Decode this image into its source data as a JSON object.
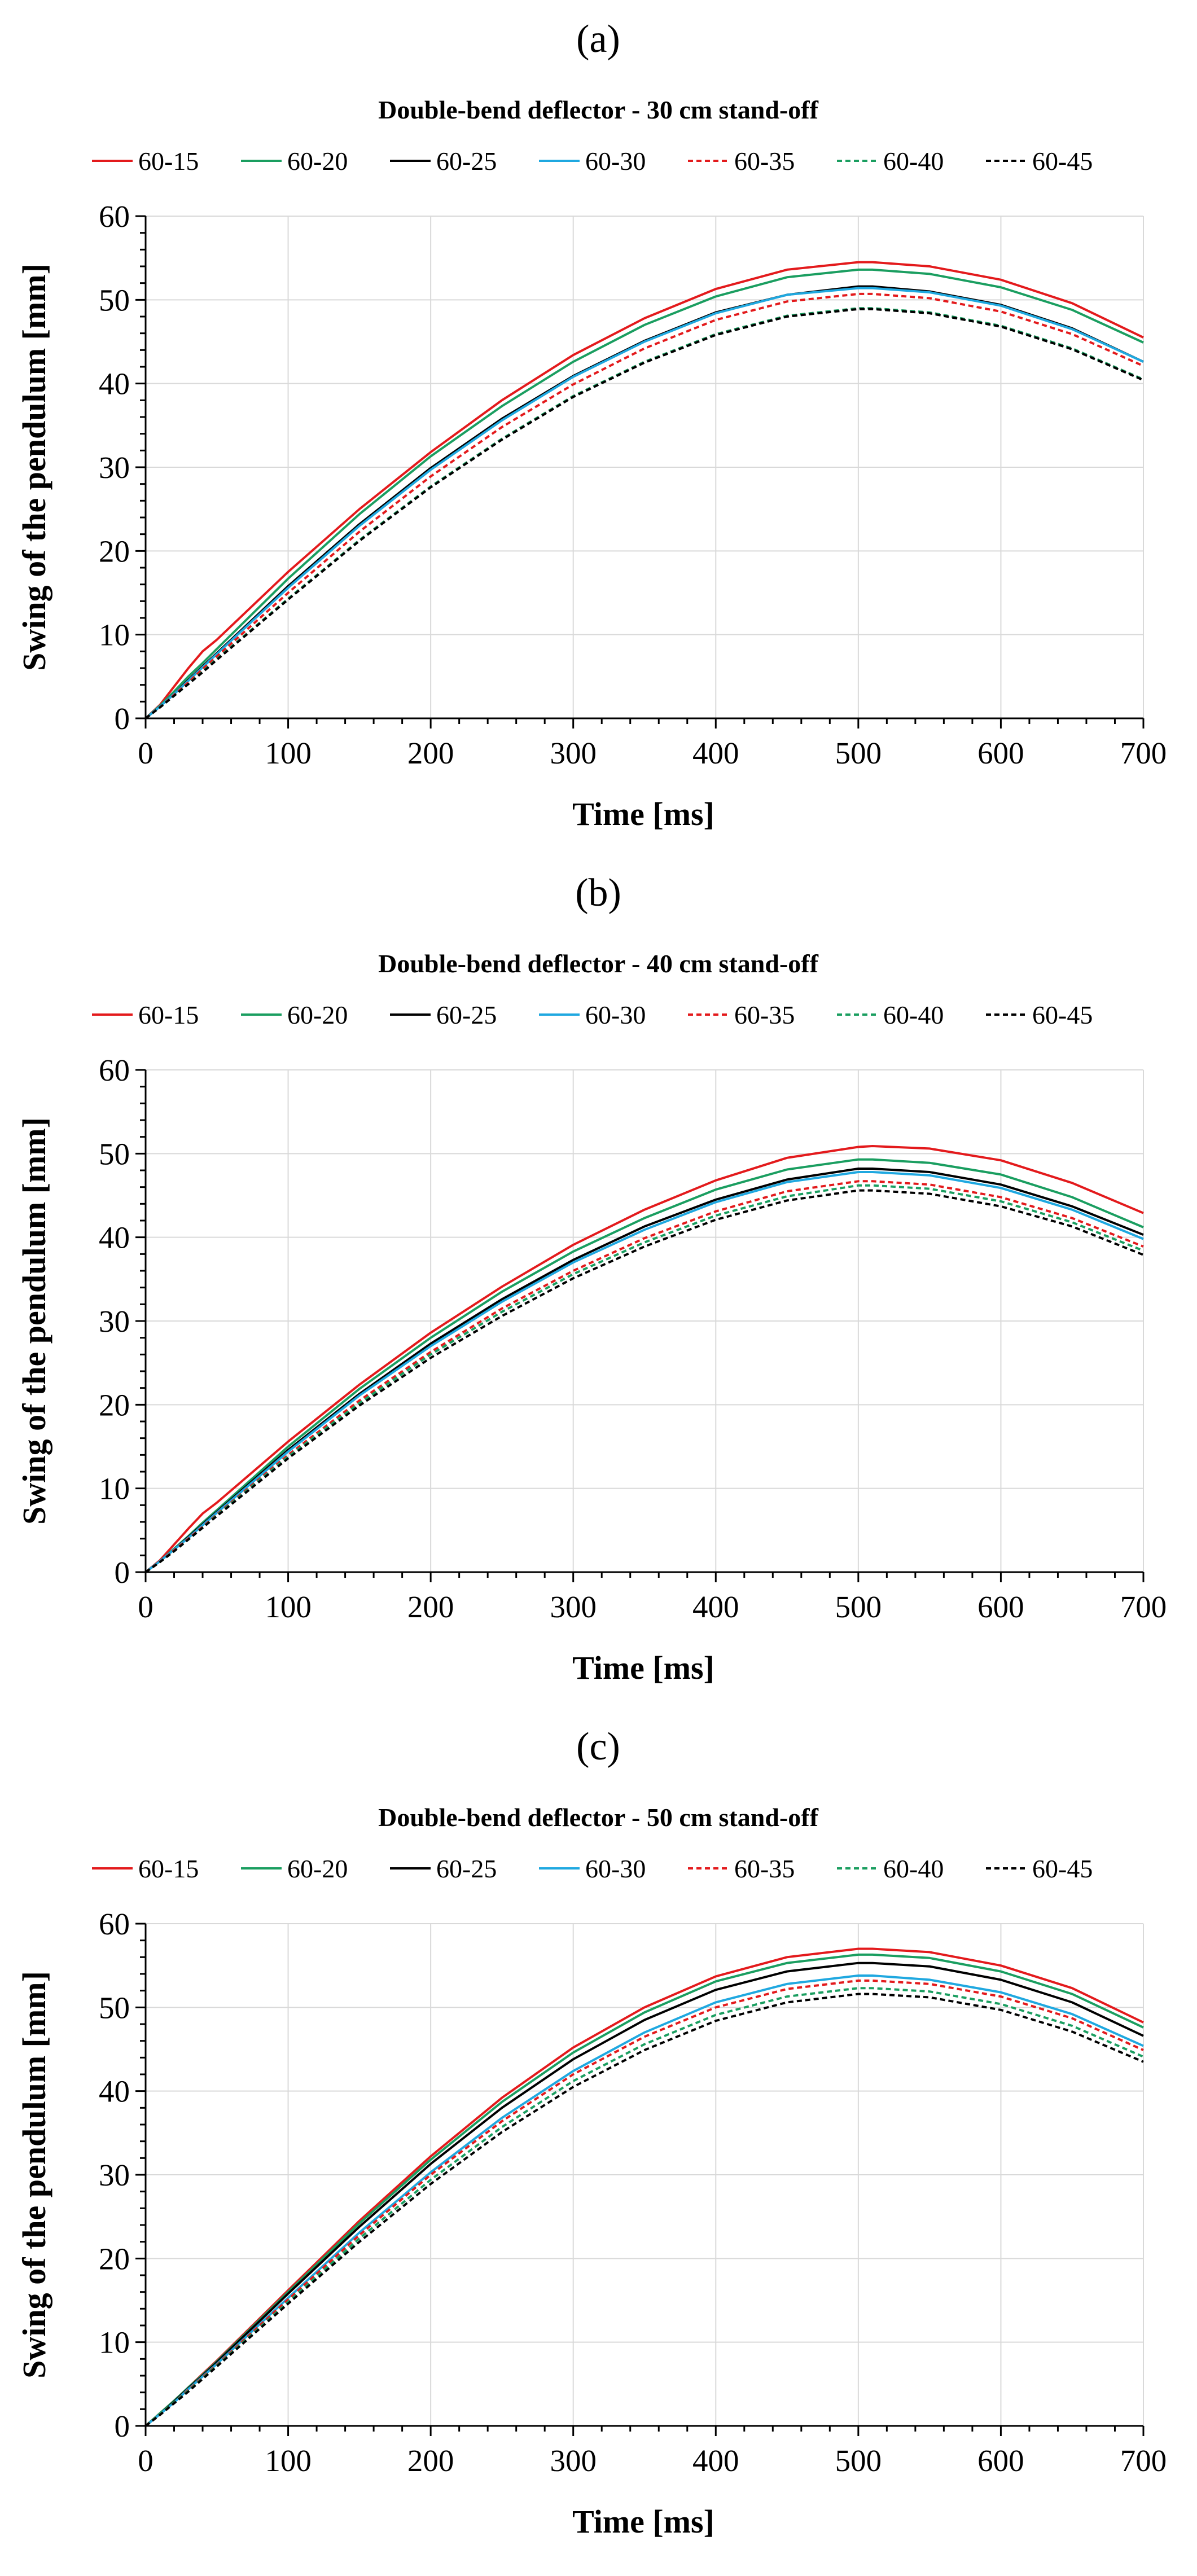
{
  "colors": {
    "red": "#e31a1c",
    "green": "#1a9e60",
    "black": "#000000",
    "blue": "#1fa8e0",
    "grid": "#d9d9d9",
    "axis": "#000000"
  },
  "legend_order": [
    "60-15",
    "60-20",
    "60-25",
    "60-30",
    "60-35",
    "60-40",
    "60-45"
  ],
  "chart_data": [
    {
      "type": "line",
      "panel": "(a)",
      "title": "Double-bend deflector - 30 cm stand-off",
      "xlabel": "Time [ms]",
      "ylabel": "Swing of the pendulum [mm]",
      "xlim": [
        0,
        700
      ],
      "ylim": [
        0,
        60
      ],
      "xticks": [
        0,
        100,
        200,
        300,
        400,
        500,
        600,
        700
      ],
      "yticks": [
        0,
        10,
        20,
        30,
        40,
        50,
        60
      ],
      "grid": true,
      "legend_position": "top",
      "x": [
        0,
        10,
        20,
        30,
        40,
        50,
        100,
        150,
        200,
        250,
        300,
        350,
        400,
        450,
        500,
        510,
        550,
        600,
        650,
        700
      ],
      "series": [
        {
          "name": "60-15",
          "color": "red",
          "dash": false,
          "values": [
            0,
            1.6,
            3.8,
            6.0,
            8.0,
            9.4,
            17.5,
            25.0,
            31.8,
            38.0,
            43.4,
            47.8,
            51.3,
            53.6,
            54.5,
            54.5,
            54.0,
            52.4,
            49.6,
            45.5
          ]
        },
        {
          "name": "60-20",
          "color": "green",
          "dash": false,
          "values": [
            0,
            1.5,
            3.2,
            5.0,
            6.6,
            8.3,
            16.7,
            24.4,
            31.3,
            37.3,
            42.6,
            47.0,
            50.4,
            52.7,
            53.6,
            53.6,
            53.1,
            51.5,
            48.8,
            44.9
          ]
        },
        {
          "name": "60-25",
          "color": "black",
          "dash": false,
          "values": [
            0,
            1.4,
            2.9,
            4.6,
            6.2,
            7.8,
            15.8,
            23.2,
            29.9,
            35.8,
            40.9,
            45.1,
            48.5,
            50.6,
            51.6,
            51.6,
            51.0,
            49.4,
            46.6,
            42.6
          ]
        },
        {
          "name": "60-30",
          "color": "blue",
          "dash": false,
          "values": [
            0,
            1.4,
            2.9,
            4.5,
            6.1,
            7.7,
            15.6,
            23.0,
            29.7,
            35.6,
            40.8,
            45.0,
            48.4,
            50.6,
            51.4,
            51.4,
            50.9,
            49.3,
            46.5,
            42.6
          ]
        },
        {
          "name": "60-35",
          "color": "red",
          "dash": true,
          "values": [
            0,
            1.3,
            2.8,
            4.3,
            5.9,
            7.4,
            15.0,
            22.3,
            28.9,
            34.8,
            39.9,
            44.2,
            47.6,
            49.8,
            50.7,
            50.7,
            50.2,
            48.6,
            45.9,
            42.1
          ]
        },
        {
          "name": "60-40",
          "color": "green",
          "dash": true,
          "values": [
            0,
            1.3,
            2.7,
            4.1,
            5.6,
            7.1,
            14.3,
            21.3,
            27.7,
            33.4,
            38.5,
            42.6,
            45.9,
            48.1,
            49.0,
            49.0,
            48.5,
            46.9,
            44.2,
            40.5
          ]
        },
        {
          "name": "60-45",
          "color": "black",
          "dash": true,
          "values": [
            0,
            1.3,
            2.7,
            4.1,
            5.5,
            7.0,
            14.2,
            21.2,
            27.6,
            33.3,
            38.4,
            42.5,
            45.8,
            48.0,
            48.9,
            48.9,
            48.4,
            46.8,
            44.1,
            40.4
          ]
        }
      ]
    },
    {
      "type": "line",
      "panel": "(b)",
      "title": "Double-bend deflector - 40 cm stand-off",
      "xlabel": "Time [ms]",
      "ylabel": "Swing of the pendulum [mm]",
      "xlim": [
        0,
        700
      ],
      "ylim": [
        0,
        60
      ],
      "xticks": [
        0,
        100,
        200,
        300,
        400,
        500,
        600,
        700
      ],
      "yticks": [
        0,
        10,
        20,
        30,
        40,
        50,
        60
      ],
      "grid": true,
      "legend_position": "top",
      "x": [
        0,
        10,
        20,
        30,
        40,
        50,
        100,
        150,
        200,
        250,
        300,
        350,
        400,
        450,
        500,
        510,
        550,
        600,
        650,
        700
      ],
      "series": [
        {
          "name": "60-15",
          "color": "red",
          "dash": false,
          "values": [
            0,
            1.4,
            3.3,
            5.2,
            7.0,
            8.3,
            15.6,
            22.4,
            28.6,
            34.1,
            39.1,
            43.3,
            46.8,
            49.5,
            50.8,
            50.9,
            50.6,
            49.2,
            46.5,
            42.9
          ]
        },
        {
          "name": "60-20",
          "color": "green",
          "dash": false,
          "values": [
            0,
            1.3,
            2.8,
            4.3,
            5.9,
            7.4,
            15.0,
            21.9,
            28.0,
            33.5,
            38.3,
            42.3,
            45.7,
            48.1,
            49.3,
            49.3,
            48.9,
            47.5,
            44.8,
            41.2
          ]
        },
        {
          "name": "60-25",
          "color": "black",
          "dash": false,
          "values": [
            0,
            1.3,
            2.7,
            4.2,
            5.7,
            7.2,
            14.6,
            21.3,
            27.3,
            32.6,
            37.3,
            41.3,
            44.5,
            46.9,
            48.2,
            48.2,
            47.8,
            46.3,
            43.7,
            40.3
          ]
        },
        {
          "name": "60-30",
          "color": "blue",
          "dash": false,
          "values": [
            0,
            1.3,
            2.7,
            4.1,
            5.6,
            7.1,
            14.4,
            21.1,
            27.0,
            32.3,
            37.0,
            40.9,
            44.2,
            46.6,
            47.8,
            47.8,
            47.4,
            45.9,
            43.3,
            39.8
          ]
        },
        {
          "name": "60-35",
          "color": "red",
          "dash": true,
          "values": [
            0,
            1.2,
            2.6,
            4.0,
            5.4,
            6.9,
            14.0,
            20.5,
            26.3,
            31.5,
            36.0,
            39.9,
            43.1,
            45.5,
            46.7,
            46.7,
            46.3,
            44.8,
            42.3,
            38.9
          ]
        },
        {
          "name": "60-40",
          "color": "green",
          "dash": true,
          "values": [
            0,
            1.2,
            2.5,
            3.9,
            5.3,
            6.8,
            13.8,
            20.2,
            26.0,
            31.1,
            35.6,
            39.4,
            42.6,
            44.9,
            46.2,
            46.2,
            45.8,
            44.3,
            41.8,
            38.4
          ]
        },
        {
          "name": "60-45",
          "color": "black",
          "dash": true,
          "values": [
            0,
            1.2,
            2.5,
            3.9,
            5.3,
            6.7,
            13.6,
            19.9,
            25.6,
            30.6,
            35.1,
            38.9,
            42.1,
            44.4,
            45.6,
            45.6,
            45.2,
            43.7,
            41.3,
            37.9
          ]
        }
      ]
    },
    {
      "type": "line",
      "panel": "(c)",
      "title": "Double-bend deflector - 50 cm stand-off",
      "xlabel": "Time [ms]",
      "ylabel": "Swing of the pendulum [mm]",
      "xlim": [
        0,
        700
      ],
      "ylim": [
        0,
        60
      ],
      "xticks": [
        0,
        100,
        200,
        300,
        400,
        500,
        600,
        700
      ],
      "yticks": [
        0,
        10,
        20,
        30,
        40,
        50,
        60
      ],
      "grid": true,
      "legend_position": "top",
      "x": [
        0,
        10,
        20,
        30,
        40,
        50,
        100,
        150,
        200,
        250,
        300,
        350,
        400,
        450,
        500,
        510,
        550,
        600,
        650,
        700
      ],
      "series": [
        {
          "name": "60-15",
          "color": "red",
          "dash": false,
          "values": [
            0,
            1.5,
            3.0,
            4.6,
            6.2,
            7.8,
            16.2,
            24.5,
            32.2,
            39.2,
            45.2,
            50.0,
            53.7,
            56.0,
            57.0,
            57.0,
            56.6,
            55.0,
            52.3,
            48.2
          ]
        },
        {
          "name": "60-20",
          "color": "green",
          "dash": false,
          "values": [
            0,
            1.5,
            3.0,
            4.6,
            6.1,
            7.7,
            16.0,
            24.2,
            31.8,
            38.7,
            44.6,
            49.4,
            53.1,
            55.3,
            56.3,
            56.3,
            55.9,
            54.3,
            51.6,
            47.6
          ]
        },
        {
          "name": "60-25",
          "color": "black",
          "dash": false,
          "values": [
            0,
            1.4,
            2.9,
            4.5,
            6.0,
            7.6,
            15.8,
            23.8,
            31.3,
            38.0,
            43.8,
            48.5,
            52.1,
            54.3,
            55.3,
            55.3,
            54.9,
            53.3,
            50.6,
            46.6
          ]
        },
        {
          "name": "60-30",
          "color": "blue",
          "dash": false,
          "values": [
            0,
            1.4,
            2.8,
            4.4,
            5.9,
            7.4,
            15.3,
            23.1,
            30.3,
            36.8,
            42.4,
            47.0,
            50.6,
            52.8,
            53.8,
            53.8,
            53.3,
            51.8,
            49.2,
            45.4
          ]
        },
        {
          "name": "60-35",
          "color": "red",
          "dash": true,
          "values": [
            0,
            1.4,
            2.8,
            4.3,
            5.8,
            7.3,
            15.1,
            22.8,
            30.0,
            36.4,
            42.0,
            46.5,
            50.0,
            52.2,
            53.2,
            53.2,
            52.8,
            51.3,
            48.7,
            44.9
          ]
        },
        {
          "name": "60-40",
          "color": "green",
          "dash": true,
          "values": [
            0,
            1.4,
            2.8,
            4.2,
            5.7,
            7.2,
            14.8,
            22.4,
            29.4,
            35.7,
            41.2,
            45.6,
            49.1,
            51.3,
            52.3,
            52.3,
            51.9,
            50.4,
            47.8,
            44.1
          ]
        },
        {
          "name": "60-45",
          "color": "black",
          "dash": true,
          "values": [
            0,
            1.3,
            2.7,
            4.1,
            5.6,
            7.1,
            14.6,
            22.0,
            28.9,
            35.1,
            40.5,
            44.9,
            48.4,
            50.6,
            51.6,
            51.6,
            51.2,
            49.7,
            47.1,
            43.5
          ]
        }
      ]
    }
  ]
}
